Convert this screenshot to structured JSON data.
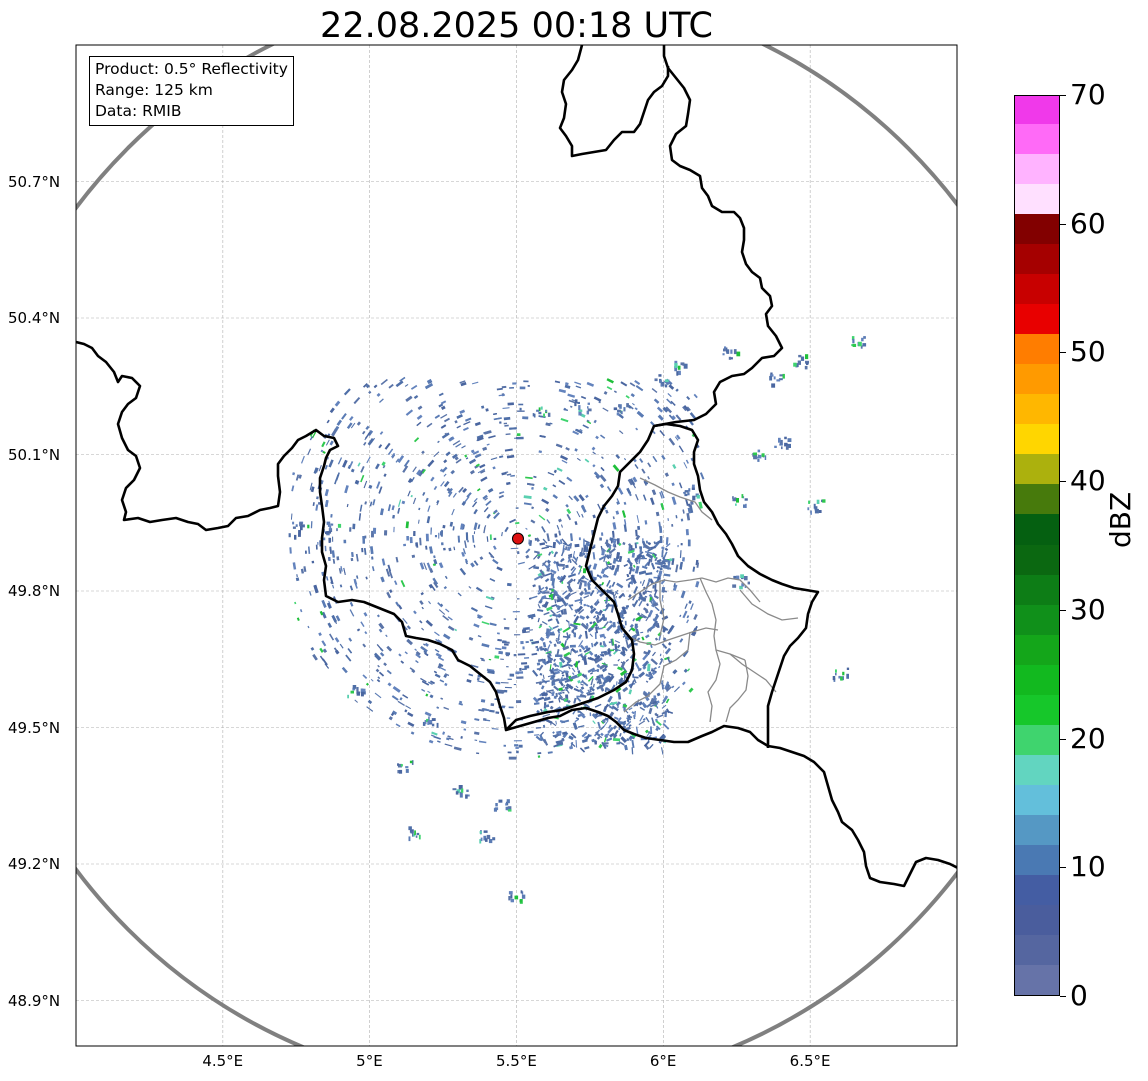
{
  "title": "22.08.2025 00:18 UTC",
  "info": {
    "product": "Product: 0.5° Reflectivity",
    "range": "Range: 125 km",
    "data": "Data: RMIB"
  },
  "map": {
    "lon_range": [
      4.0,
      7.0
    ],
    "lat_range": [
      48.8,
      51.0
    ],
    "radar_site": {
      "lon": 5.505,
      "lat": 49.915
    },
    "range_ring_color": "#808080",
    "radar_marker_color": "#dd1111",
    "gridlines": true,
    "lat_ticks": [
      {
        "value": 50.7,
        "label": "50.7°N"
      },
      {
        "value": 50.4,
        "label": "50.4°N"
      },
      {
        "value": 50.1,
        "label": "50.1°N"
      },
      {
        "value": 49.8,
        "label": "49.8°N"
      },
      {
        "value": 49.5,
        "label": "49.5°N"
      },
      {
        "value": 49.2,
        "label": "49.2°N"
      },
      {
        "value": 48.9,
        "label": "48.9°N"
      }
    ],
    "lon_ticks": [
      {
        "value": 4.5,
        "label": "4.5°E"
      },
      {
        "value": 5.0,
        "label": "5°E"
      },
      {
        "value": 5.5,
        "label": "5.5°E"
      },
      {
        "value": 6.0,
        "label": "6°E"
      },
      {
        "value": 6.5,
        "label": "6.5°E"
      }
    ]
  },
  "colorbar": {
    "label": "dBZ",
    "min": 0,
    "max": 70,
    "ticks": [
      "0",
      "10",
      "20",
      "30",
      "40",
      "50",
      "60",
      "70"
    ],
    "colors": [
      "#6673a8",
      "#5566a0",
      "#4a5d9d",
      "#445da3",
      "#4a79b3",
      "#5598c4",
      "#63bfdb",
      "#62d5c0",
      "#3fd46e",
      "#16c72a",
      "#12b91f",
      "#14a61a",
      "#10901a",
      "#0d7d16",
      "#0b6811",
      "#056011",
      "#477a0c",
      "#acb10d",
      "#ffd600",
      "#ffb700",
      "#ff9a00",
      "#ff7d00",
      "#e80000",
      "#c80000",
      "#a50000",
      "#820000",
      "#ffe0ff",
      "#ffb3ff",
      "#ff6af7",
      "#f039ea"
    ]
  }
}
